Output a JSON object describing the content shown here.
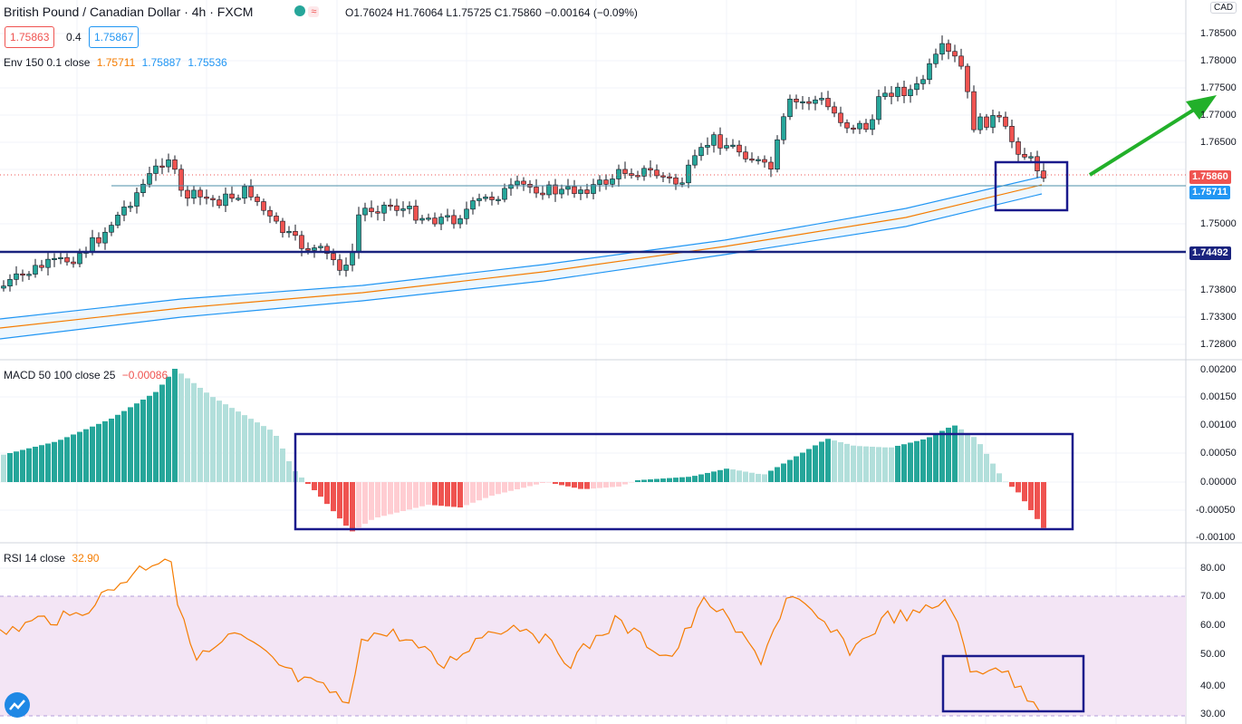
{
  "header": {
    "title": "British Pound / Canadian Dollar · 4h · FXCM",
    "ohlc": "O1.76024 H1.76064 L1.75725 C1.75860 −0.00164 (−0.09%)",
    "bid": "1.75863",
    "spread": "0.4",
    "ask": "1.75867",
    "currency": "CAD"
  },
  "indicators": {
    "env_label": "Env 150 0.1 close",
    "env_mid": "1.75711",
    "env_upper": "1.75887",
    "env_lower": "1.75536",
    "macd_label": "MACD 50 100 close 25",
    "macd_value": "−0.00086",
    "rsi_label": "RSI 14 close",
    "rsi_value": "32.90"
  },
  "price_axis": {
    "ticks": [
      "1.78500",
      "1.78000",
      "1.77500",
      "1.77000",
      "1.76500",
      "1.75000",
      "1.73800",
      "1.73300",
      "1.72800"
    ],
    "price_label": "1.75860",
    "env_label": "1.75711",
    "level_label": "1.74492"
  },
  "macd_axis": {
    "ticks": [
      "0.00200",
      "0.00150",
      "0.00100",
      "0.00050",
      "0.00000",
      "-0.00050",
      "-0.00100"
    ]
  },
  "rsi_axis": {
    "ticks": [
      "80.00",
      "70.00",
      "60.00",
      "50.00",
      "40.00",
      "30.00"
    ]
  },
  "colors": {
    "up": "#26a69a",
    "down": "#ef5350",
    "macd_up": "#26a69a",
    "macd_up_light": "#b2dfdb",
    "macd_down": "#ef5350",
    "macd_down_light": "#ffcdd2",
    "env_mid": "#f57c00",
    "env_band": "#2196f3",
    "level": "#1a237e",
    "rsi": "#f57c00",
    "rsi_bg": "#f3e5f5",
    "annot": "#1a1a8c",
    "arrow": "#22b02a"
  },
  "icons": [
    "chart-style-icon",
    "tradingview-logo-icon"
  ]
}
